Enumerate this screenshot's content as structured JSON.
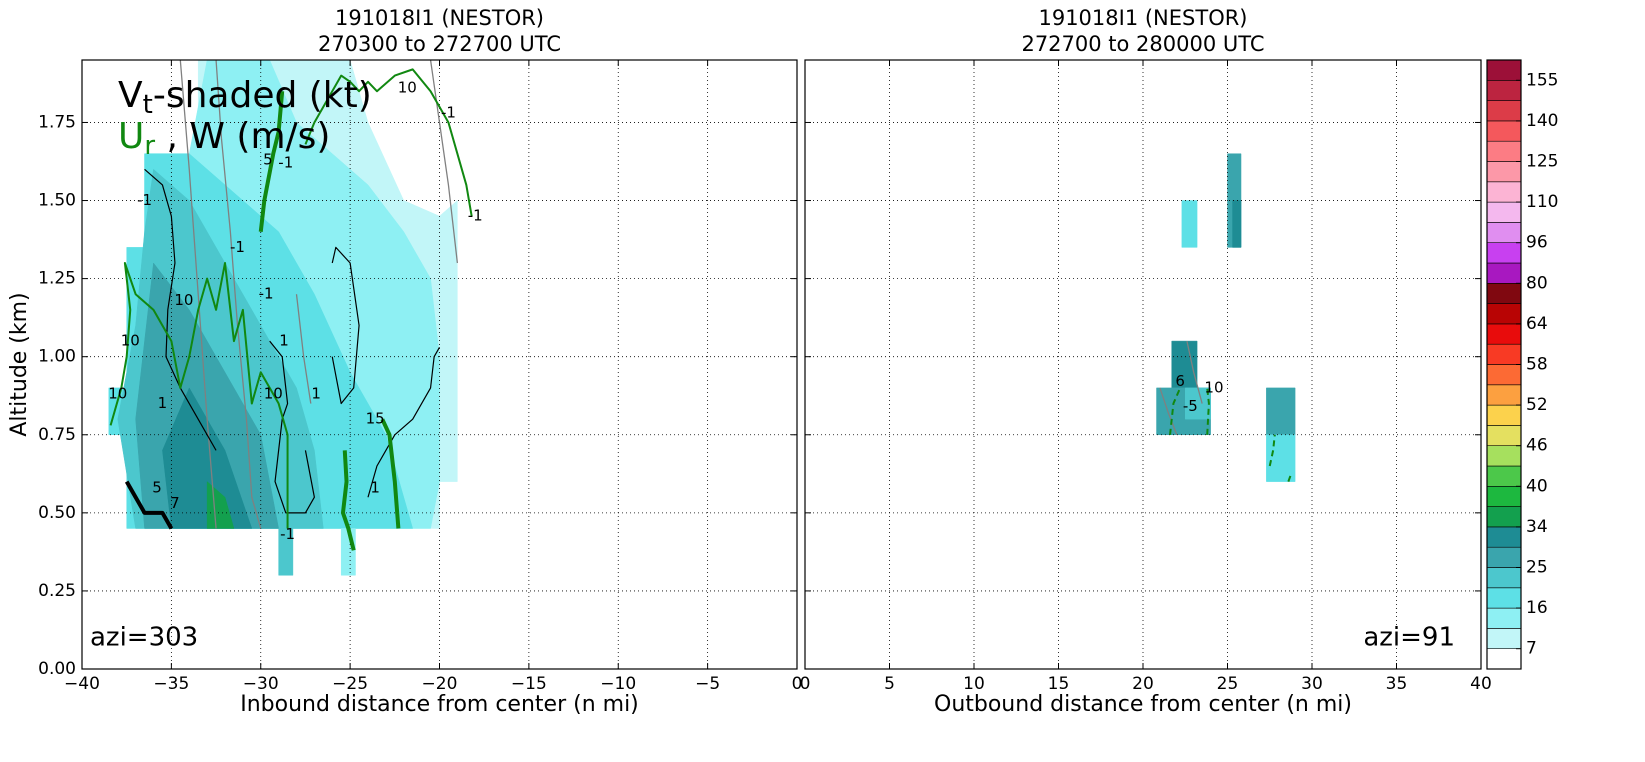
{
  "chart_data": [
    {
      "type": "contour",
      "title": [
        "191018I1 (NESTOR)",
        "270300 to 272700 UTC"
      ],
      "xlabel": "Inbound distance from center (n mi)",
      "ylabel": "Altitude (km)",
      "annotation": "azi=303",
      "annotation_corner": "lower left",
      "xlim": [
        -40,
        0
      ],
      "ylim": [
        0,
        1.95
      ],
      "xticks": [
        {
          "value": -40,
          "label": "−40"
        },
        {
          "value": -35,
          "label": "−35"
        },
        {
          "value": -30,
          "label": "−30"
        },
        {
          "value": -25,
          "label": "−25"
        },
        {
          "value": -20,
          "label": "−20"
        },
        {
          "value": -15,
          "label": "−15"
        },
        {
          "value": -10,
          "label": "−10"
        },
        {
          "value": -5,
          "label": "−5"
        },
        0
      ],
      "yticks": [
        {
          "value": 0,
          "label": "0.00"
        },
        {
          "value": 0.25,
          "label": "0.25"
        },
        {
          "value": 0.5,
          "label": "0.50"
        },
        {
          "value": 0.75,
          "label": "0.75"
        },
        {
          "value": 1,
          "label": "1.00"
        },
        {
          "value": 1.25,
          "label": "1.25"
        },
        {
          "value": 1.5,
          "label": "1.50"
        },
        {
          "value": 1.75,
          "label": "1.75"
        }
      ],
      "ytick_labels": true,
      "grid": true,
      "shaded": [
        {
          "value": 9,
          "x": [
            -33.5,
            -25,
            -24,
            -22,
            -20,
            -19,
            -19,
            -20,
            -20,
            -33.5
          ],
          "y": [
            1.95,
            1.95,
            1.75,
            1.5,
            1.45,
            1.5,
            0.6,
            0.6,
            0.45,
            0.45
          ]
        },
        {
          "value": 14,
          "x": [
            -33,
            -29.5,
            -28,
            -26,
            -24,
            -22,
            -20.5,
            -20,
            -20,
            -20.5,
            -36.5,
            -36.5,
            -34
          ],
          "y": [
            1.95,
            1.95,
            1.75,
            1.65,
            1.55,
            1.4,
            1.25,
            1.0,
            0.6,
            0.45,
            0.45,
            1.65,
            1.65
          ]
        },
        {
          "value": 18,
          "x": [
            -36.5,
            -34,
            -32,
            -29,
            -27,
            -25,
            -23,
            -21.5,
            -37.5,
            -37.5,
            -38.5,
            -38.5,
            -37.5,
            -37.5,
            -36.5
          ],
          "y": [
            1.65,
            1.65,
            1.55,
            1.4,
            1.2,
            0.95,
            0.75,
            0.45,
            0.45,
            0.75,
            0.75,
            0.9,
            0.9,
            1.35,
            1.35
          ]
        },
        {
          "value": 23,
          "x": [
            -36,
            -34,
            -32,
            -30,
            -28,
            -27,
            -26.5,
            -37,
            -38,
            -37,
            -36.5
          ],
          "y": [
            1.6,
            1.5,
            1.3,
            1.1,
            0.9,
            0.7,
            0.45,
            0.45,
            0.8,
            1.1,
            1.4
          ]
        },
        {
          "value": 27,
          "x": [
            -36,
            -34,
            -32,
            -30,
            -29,
            -36.5,
            -37
          ],
          "y": [
            1.3,
            1.15,
            0.95,
            0.75,
            0.45,
            0.45,
            0.8
          ]
        },
        {
          "value": 32,
          "x": [
            -34,
            -32,
            -30.5,
            -35,
            -35.5
          ],
          "y": [
            0.9,
            0.7,
            0.45,
            0.45,
            0.7
          ]
        },
        {
          "value": 35,
          "x": [
            -33,
            -32,
            -31.5,
            -33
          ],
          "y": [
            0.6,
            0.55,
            0.45,
            0.45
          ]
        },
        {
          "value": 23,
          "x": [
            -29,
            -28.2,
            -28.2,
            -29
          ],
          "y": [
            0.45,
            0.45,
            0.3,
            0.3
          ]
        },
        {
          "value": 14,
          "x": [
            -25.5,
            -24.7,
            -24.7,
            -25.5
          ],
          "y": [
            0.45,
            0.45,
            0.3,
            0.3
          ]
        }
      ],
      "contours": [
        {
          "color": "#808080",
          "weight": "thin",
          "dashed": false,
          "x": [
            -34.5,
            -34.0,
            -33.5,
            -33.0,
            -32.5
          ],
          "y": [
            1.95,
            1.6,
            1.2,
            0.8,
            0.45
          ]
        },
        {
          "color": "#808080",
          "weight": "thin",
          "dashed": false,
          "x": [
            -32.5,
            -32.2,
            -31.7,
            -31.3,
            -30.8,
            -30.5,
            -30.0
          ],
          "y": [
            1.95,
            1.7,
            1.4,
            1.1,
            0.8,
            0.55,
            0.45
          ]
        },
        {
          "color": "#808080",
          "weight": "thin",
          "dashed": false,
          "x": [
            -20.5,
            -20.0,
            -19.5,
            -19.0
          ],
          "y": [
            1.95,
            1.75,
            1.55,
            1.3
          ]
        },
        {
          "color": "#808080",
          "weight": "thin",
          "dashed": false,
          "x": [
            -28.0,
            -27.6,
            -27.2
          ],
          "y": [
            1.2,
            1.0,
            0.85
          ]
        },
        {
          "color": "#000000",
          "weight": "thin",
          "dashed": false,
          "x": [
            -36.5,
            -35.5,
            -35.0,
            -34.8,
            -35.2,
            -35.3,
            -34.5,
            -33.5,
            -32.5
          ],
          "y": [
            1.6,
            1.55,
            1.45,
            1.3,
            1.15,
            1.0,
            0.9,
            0.8,
            0.7
          ]
        },
        {
          "color": "#000000",
          "weight": "thin",
          "dashed": false,
          "x": [
            -29.5,
            -28.8,
            -28.5,
            -28.8,
            -29.2,
            -28.6,
            -27.5,
            -27.0,
            -27.5
          ],
          "y": [
            1.05,
            1.0,
            0.85,
            0.8,
            0.6,
            0.5,
            0.5,
            0.55,
            0.7
          ]
        },
        {
          "color": "#000000",
          "weight": "thin",
          "dashed": false,
          "x": [
            -26.0,
            -25.8,
            -25.0,
            -24.5,
            -24.8,
            -25.5,
            -26.0
          ],
          "y": [
            1.3,
            1.35,
            1.3,
            1.1,
            0.9,
            0.85,
            1.0
          ]
        },
        {
          "color": "#000000",
          "weight": "thin",
          "dashed": false,
          "x": [
            -24.0,
            -23.5,
            -22.5,
            -21.5,
            -20.5,
            -20.3,
            -20.0
          ],
          "y": [
            0.55,
            0.65,
            0.75,
            0.8,
            0.9,
            1.0,
            1.03
          ]
        },
        {
          "color": "#000000",
          "weight": "thick",
          "dashed": false,
          "x": [
            -37.5,
            -36.5,
            -35.5,
            -35.0
          ],
          "y": [
            0.6,
            0.5,
            0.5,
            0.45
          ]
        },
        {
          "color": "#118811",
          "weight": "thin",
          "dashed": false,
          "x": [
            -38.4,
            -37.8,
            -37.5,
            -37.3,
            -37.6,
            -37.0,
            -36.0,
            -35.0,
            -34.5,
            -34.0,
            -33.5,
            -33.0,
            -32.5,
            -32.0,
            -31.5,
            -31.0,
            -30.5,
            -30.0,
            -29.5,
            -29.0,
            -28.5,
            -28.5
          ],
          "y": [
            0.78,
            0.9,
            1.0,
            1.15,
            1.3,
            1.2,
            1.15,
            1.05,
            0.9,
            1.0,
            1.15,
            1.25,
            1.15,
            1.3,
            1.05,
            1.15,
            0.85,
            0.95,
            0.9,
            0.85,
            0.75,
            0.45
          ]
        },
        {
          "color": "#118811",
          "weight": "thin",
          "dashed": false,
          "x": [
            -27.5,
            -27.0,
            -26.0,
            -25.5,
            -25.0,
            -24.5,
            -24.0,
            -23.5,
            -22.5,
            -21.5,
            -20.5,
            -19.5,
            -18.5,
            -18.2
          ],
          "y": [
            1.68,
            1.75,
            1.85,
            1.9,
            1.88,
            1.85,
            1.88,
            1.85,
            1.9,
            1.92,
            1.85,
            1.75,
            1.55,
            1.45
          ]
        },
        {
          "color": "#118811",
          "weight": "thick",
          "dashed": false,
          "x": [
            -30.0,
            -29.8,
            -29.3,
            -29.0,
            -28.8
          ],
          "y": [
            1.4,
            1.5,
            1.65,
            1.72,
            1.85
          ]
        },
        {
          "color": "#118811",
          "weight": "thick",
          "dashed": false,
          "x": [
            -25.3,
            -25.2,
            -25.4,
            -25.1,
            -24.8
          ],
          "y": [
            0.7,
            0.6,
            0.5,
            0.45,
            0.38
          ]
        },
        {
          "color": "#118811",
          "weight": "thick",
          "dashed": false,
          "x": [
            -23.2,
            -22.8,
            -22.5,
            -22.3
          ],
          "y": [
            0.8,
            0.75,
            0.6,
            0.45
          ]
        }
      ],
      "contour_labels": [
        {
          "value": 10,
          "color": "#118811",
          "x": -34.3,
          "y": 1.18
        },
        {
          "value": 10,
          "color": "#118811",
          "x": -37.3,
          "y": 1.05
        },
        {
          "value": 10,
          "color": "#118811",
          "x": -38.0,
          "y": 0.88
        },
        {
          "value": 10,
          "color": "#118811",
          "x": -29.3,
          "y": 0.88
        },
        {
          "value": 10,
          "color": "#118811",
          "x": -21.8,
          "y": 1.86
        },
        {
          "value": 15,
          "color": "#118811",
          "x": -23.6,
          "y": 0.8
        },
        {
          "value": 5,
          "color": "#118811",
          "x": -29.6,
          "y": 1.63
        },
        {
          "value": -1,
          "color": "#000000",
          "x": -28.6,
          "y": 1.62
        },
        {
          "value": -1,
          "color": "#000000",
          "x": -36.5,
          "y": 1.5
        },
        {
          "value": -1,
          "color": "#000000",
          "x": -31.3,
          "y": 1.35
        },
        {
          "value": -1,
          "color": "#000000",
          "x": -29.7,
          "y": 1.2
        },
        {
          "value": 1,
          "color": "#000000",
          "x": -28.7,
          "y": 1.05
        },
        {
          "value": 1,
          "color": "#000000",
          "x": -35.5,
          "y": 0.85
        },
        {
          "value": 1,
          "color": "#000000",
          "x": -26.9,
          "y": 0.88
        },
        {
          "value": 1,
          "color": "#000000",
          "x": -23.6,
          "y": 0.58
        },
        {
          "value": 5,
          "color": "#000000",
          "x": -35.8,
          "y": 0.58
        },
        {
          "value": 7,
          "color": "#000000",
          "x": -34.8,
          "y": 0.53
        },
        {
          "value": -1,
          "color": "#000000",
          "x": -18.0,
          "y": 1.45
        },
        {
          "value": -1,
          "color": "#000000",
          "x": -19.5,
          "y": 1.78
        },
        {
          "value": -1,
          "color": "#000000",
          "x": -28.5,
          "y": 0.43
        }
      ]
    },
    {
      "type": "contour",
      "title": [
        "191018I1 (NESTOR)",
        "272700 to 280000 UTC"
      ],
      "xlabel": "Outbound distance from center (n mi)",
      "annotation": "azi=91",
      "annotation_corner": "lower right",
      "xlim": [
        0,
        40
      ],
      "ylim": [
        0,
        1.95
      ],
      "xticks": [
        0,
        5,
        10,
        15,
        20,
        25,
        30,
        35,
        40
      ],
      "yticks": [
        0,
        0.25,
        0.5,
        0.75,
        1,
        1.25,
        1.5,
        1.75
      ],
      "ytick_labels": false,
      "grid": true,
      "shaded": [
        {
          "value": 18,
          "x": [
            22.3,
            23.2,
            23.2,
            22.3
          ],
          "y": [
            1.5,
            1.5,
            1.35,
            1.35
          ]
        },
        {
          "value": 27,
          "x": [
            25.0,
            25.8,
            25.8,
            25.0
          ],
          "y": [
            1.65,
            1.65,
            1.35,
            1.35
          ]
        },
        {
          "value": 32,
          "x": [
            25.3,
            25.8,
            25.8,
            25.3
          ],
          "y": [
            1.5,
            1.5,
            1.35,
            1.35
          ]
        },
        {
          "value": 32,
          "x": [
            21.7,
            23.2,
            23.2,
            21.7
          ],
          "y": [
            1.05,
            1.05,
            0.9,
            0.9
          ]
        },
        {
          "value": 27,
          "x": [
            20.8,
            24.0,
            24.0,
            20.8
          ],
          "y": [
            0.9,
            0.9,
            0.75,
            0.75
          ]
        },
        {
          "value": 23,
          "x": [
            22.5,
            24.0,
            24.0,
            22.5
          ],
          "y": [
            0.9,
            0.9,
            0.8,
            0.8
          ]
        },
        {
          "value": 27,
          "x": [
            27.3,
            29.0,
            29.0,
            27.3
          ],
          "y": [
            0.9,
            0.9,
            0.75,
            0.75
          ]
        },
        {
          "value": 18,
          "x": [
            27.3,
            29.0,
            29.0,
            27.3
          ],
          "y": [
            0.75,
            0.75,
            0.6,
            0.6
          ]
        }
      ],
      "contours": [
        {
          "color": "#808080",
          "weight": "thin",
          "dashed": false,
          "x": [
            21.0,
            21.5,
            22.0
          ],
          "y": [
            0.9,
            0.82,
            0.75
          ]
        },
        {
          "color": "#808080",
          "weight": "thin",
          "dashed": false,
          "x": [
            22.6,
            23.0,
            23.5
          ],
          "y": [
            1.05,
            0.95,
            0.85
          ]
        },
        {
          "color": "#118811",
          "weight": "thin",
          "dashed": true,
          "x": [
            21.6,
            21.8,
            22.2
          ],
          "y": [
            0.75,
            0.85,
            0.9
          ]
        },
        {
          "color": "#118811",
          "weight": "thin",
          "dashed": true,
          "x": [
            23.8,
            23.9,
            23.8
          ],
          "y": [
            0.75,
            0.85,
            0.9
          ]
        },
        {
          "color": "#118811",
          "weight": "thin",
          "dashed": true,
          "x": [
            27.5,
            27.7,
            27.8
          ],
          "y": [
            0.65,
            0.7,
            0.75
          ]
        },
        {
          "color": "#118811",
          "weight": "thin",
          "dashed": true,
          "x": [
            28.6,
            28.8
          ],
          "y": [
            0.6,
            0.63
          ]
        }
      ],
      "contour_labels": [
        {
          "value": 10,
          "color": "#118811",
          "x": 24.2,
          "y": 0.9
        },
        {
          "value": -5,
          "color": "#000000",
          "x": 22.8,
          "y": 0.84
        },
        {
          "value": 6,
          "color": "#000000",
          "x": 22.2,
          "y": 0.92
        }
      ]
    }
  ],
  "legend": {
    "line1": [
      "V",
      "t",
      "-shaded (kt)"
    ],
    "line2": [
      "U",
      "r",
      " , W (m/s)"
    ],
    "line2_color": "#118811"
  },
  "colorbar": {
    "levels": [
      2.5,
      7,
      11.5,
      16,
      20.5,
      25,
      29.5,
      34,
      37,
      40,
      43,
      46,
      49,
      52,
      55,
      58,
      61,
      64,
      72,
      80,
      88,
      96,
      103,
      110,
      117.5,
      125,
      132.5,
      140,
      147.5,
      155,
      163
    ],
    "colors": [
      "#ffffff",
      "#c2f6f8",
      "#8ef0f3",
      "#5de0e6",
      "#4cc7cd",
      "#3aa5ad",
      "#1e8c94",
      "#13a04e",
      "#1db83f",
      "#4cc84a",
      "#a6e05e",
      "#e4e060",
      "#fcd24c",
      "#fca040",
      "#fc6a34",
      "#f83a24",
      "#e80c0c",
      "#b80404",
      "#800810",
      "#a818c0",
      "#c840f0",
      "#e08ef0",
      "#f4b8ee",
      "#fcb4d4",
      "#fc98a8",
      "#fc7c84",
      "#f4585c",
      "#dc3c48",
      "#bc2440",
      "#9c1038"
    ],
    "ticks": [
      7,
      16,
      25,
      34,
      40,
      46,
      52,
      58,
      64,
      80,
      96,
      110,
      125,
      140,
      155
    ]
  }
}
